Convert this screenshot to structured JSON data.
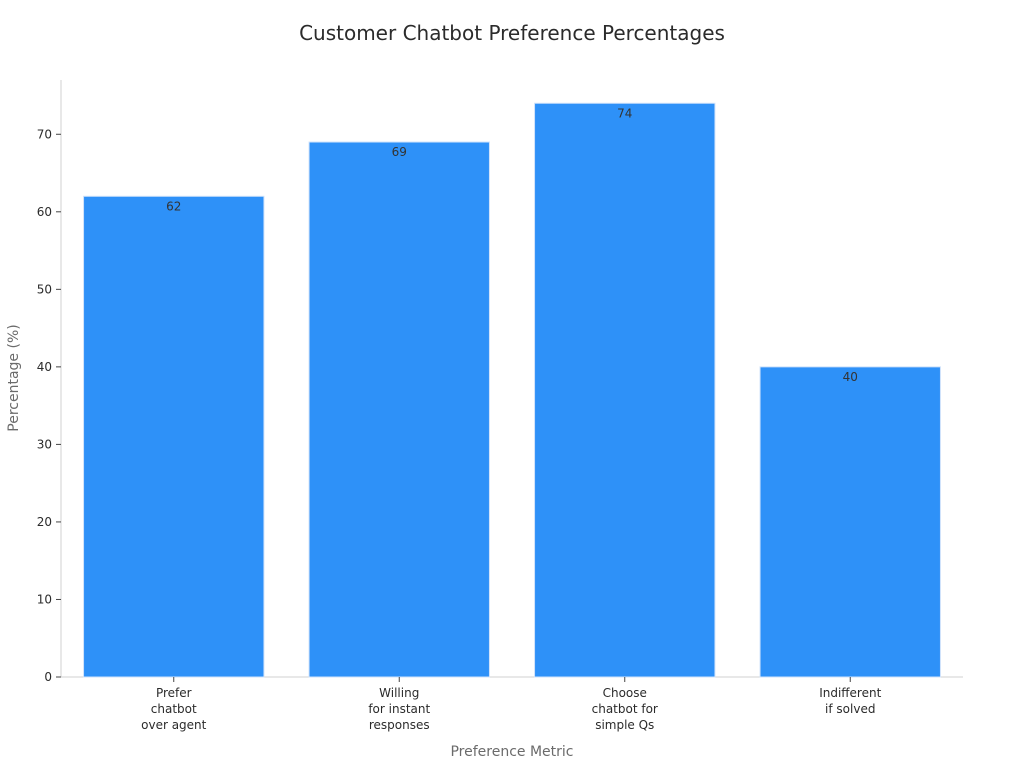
{
  "chart_data": {
    "type": "bar",
    "title": "Customer Chatbot Preference Percentages",
    "xlabel": "Preference Metric",
    "ylabel": "Percentage (%)",
    "categories": [
      "Prefer\nchatbot\nover agent",
      "Willing\nfor instant\nresponses",
      "Choose\nchatbot for\nsimple Qs",
      "Indifferent\nif solved"
    ],
    "values": [
      62,
      69,
      74,
      40
    ],
    "data_labels": [
      "62",
      "69",
      "74",
      "40"
    ],
    "ylim": [
      0,
      77
    ],
    "yticks": [
      0,
      10,
      20,
      30,
      40,
      50,
      60,
      70
    ],
    "bar_color": "#2e91f8",
    "grid": false,
    "legend": "none"
  }
}
